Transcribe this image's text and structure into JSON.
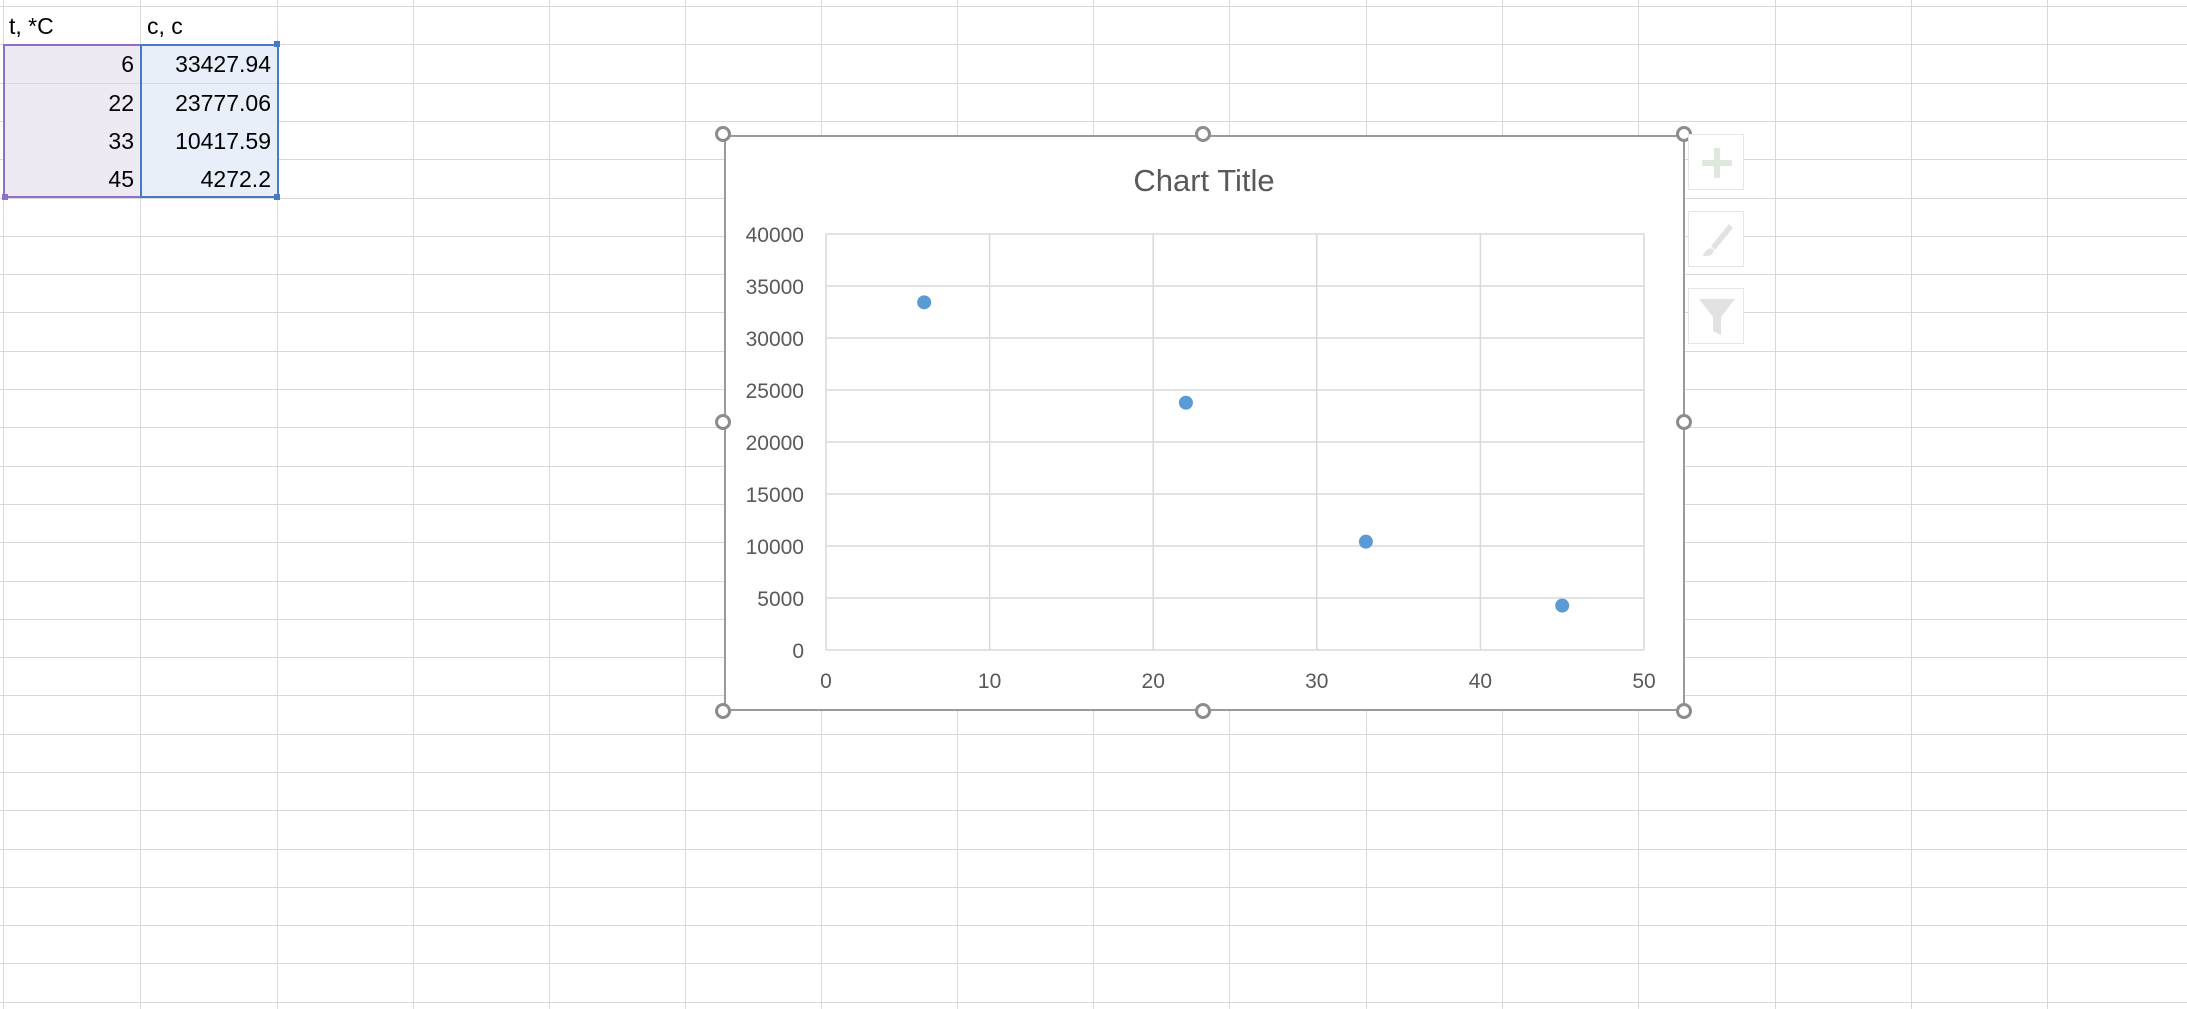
{
  "sheet": {
    "headers": [
      "t, *C",
      "c, c"
    ],
    "rows": [
      [
        "6",
        "33427.94"
      ],
      [
        "22",
        "23777.06"
      ],
      [
        "33",
        "10417.59"
      ],
      [
        "45",
        "4272.2"
      ]
    ]
  },
  "chart_toolbar": {
    "elements_icon": "plus-icon",
    "styles_icon": "brush-icon",
    "filters_icon": "filter-icon"
  },
  "chart_data": {
    "type": "scatter",
    "title": "Chart Title",
    "x": [
      6,
      22,
      33,
      45
    ],
    "y": [
      33427.94,
      23777.06,
      10417.59,
      4272.2
    ],
    "xlim": [
      0,
      50
    ],
    "ylim": [
      0,
      40000
    ],
    "xticks": [
      "0",
      "10",
      "20",
      "30",
      "40",
      "50"
    ],
    "yticks": [
      "0",
      "5000",
      "10000",
      "15000",
      "20000",
      "25000",
      "30000",
      "35000",
      "40000"
    ],
    "grid": true,
    "marker_color": "#5b9bd5",
    "legend": "none"
  }
}
